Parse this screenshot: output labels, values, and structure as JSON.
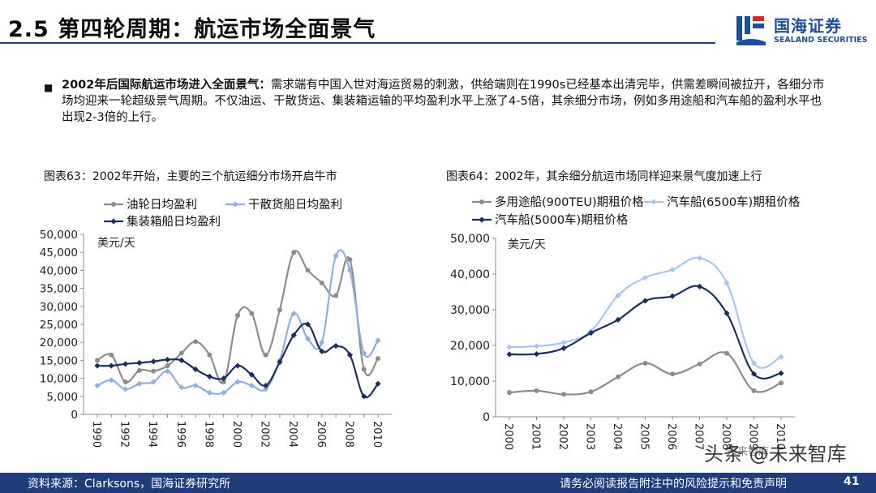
{
  "header": {
    "title": "2.5 第四轮周期：航运市场全面景气",
    "logo_cn": "国海证券",
    "logo_en": "SEALAND SECURITIES"
  },
  "bullet": {
    "bold": "2002年后国际航运市场进入全面景气：",
    "text": "需求端有中国入世对海运贸易的刺激，供给端则在1990s已经基本出清完毕，供需差瞬间被拉开，各细分市场均迎来一轮超级景气周期。不仅油运、干散货运、集装箱运输的平均盈利水平上涨了4-5倍，其余细分市场，例如多用途船和汽车船的盈利水平也出现2-3倍的上行。"
  },
  "figures": {
    "left_title": "图表63：2002年开始，主要的三个航运细分市场开启牛市",
    "right_title": "图表64：2002年，其余细分航运市场同样迎来景气度加速上行"
  },
  "footer": {
    "source": "资料来源：Clarksons，国海证券研究所",
    "disclaimer": "请务必阅读报告附注中的风险提示和免责声明",
    "page": "41"
  },
  "watermark": {
    "text": "头条 @未来智库",
    "small": "未来智库"
  },
  "chart_data": [
    {
      "type": "line",
      "unit_label": "美元/天",
      "x": [
        1990,
        1991,
        1992,
        1993,
        1994,
        1995,
        1996,
        1997,
        1998,
        1999,
        2000,
        2001,
        2002,
        2003,
        2004,
        2005,
        2006,
        2007,
        2008,
        2009,
        2010
      ],
      "x_tick_labels": [
        "1990",
        "1992",
        "1994",
        "1996",
        "1998",
        "2000",
        "2002",
        "2004",
        "2006",
        "2008",
        "2010"
      ],
      "ylim": [
        0,
        50000
      ],
      "y_ticks": [
        "0",
        "5,000",
        "10,000",
        "15,000",
        "20,000",
        "25,000",
        "30,000",
        "35,000",
        "40,000",
        "45,000",
        "50,000"
      ],
      "legend_position": "top",
      "series": [
        {
          "name": "油轮日均盈利",
          "color": "#8c8c8c",
          "marker": "circle",
          "values": [
            15000,
            16500,
            9000,
            12200,
            12000,
            13500,
            17000,
            20200,
            16500,
            9000,
            27500,
            28000,
            16500,
            29000,
            45000,
            40000,
            36500,
            33000,
            43000,
            12500,
            15500
          ]
        },
        {
          "name": "干散货船日均盈利",
          "color": "#8db0e0",
          "marker": "diamond",
          "values": [
            8000,
            9500,
            7000,
            8500,
            9000,
            12000,
            7500,
            8000,
            6000,
            6000,
            9000,
            8000,
            7000,
            15000,
            28000,
            21000,
            20000,
            44000,
            40000,
            17000,
            20500
          ]
        },
        {
          "name": "集装箱船日均盈利",
          "color": "#1c2f5c",
          "marker": "diamond",
          "values": [
            13500,
            13500,
            14000,
            14300,
            14700,
            15200,
            15000,
            12500,
            10500,
            10000,
            13500,
            11000,
            8000,
            14500,
            22000,
            25000,
            17500,
            19000,
            16500,
            5000,
            8500
          ]
        }
      ]
    },
    {
      "type": "line",
      "unit_label": "美元/天",
      "x": [
        2000,
        2001,
        2002,
        2003,
        2004,
        2005,
        2006,
        2007,
        2008,
        2009,
        2010
      ],
      "x_tick_labels": [
        "2000",
        "2001",
        "2002",
        "2003",
        "2004",
        "2005",
        "2006",
        "2007",
        "2008",
        "2009",
        "2010"
      ],
      "ylim": [
        0,
        50000
      ],
      "y_ticks": [
        "0",
        "10,000",
        "20,000",
        "30,000",
        "40,000",
        "50,000"
      ],
      "legend_position": "top",
      "series": [
        {
          "name": "多用途船(900TEU)期租价格",
          "color": "#8c8c8c",
          "marker": "circle",
          "values": [
            6800,
            7300,
            6300,
            7000,
            11200,
            15000,
            12000,
            14800,
            17800,
            7300,
            9500
          ]
        },
        {
          "name": "汽车船(6500车)期租价格",
          "color": "#a8c6ec",
          "marker": "diamond",
          "values": [
            19500,
            19800,
            20800,
            24000,
            34000,
            39000,
            41200,
            44500,
            37500,
            15000,
            16800
          ]
        },
        {
          "name": "汽车船(5000车)期租价格",
          "color": "#1c2f5c",
          "marker": "diamond",
          "values": [
            17500,
            17600,
            19200,
            23500,
            27200,
            32500,
            33800,
            36500,
            29000,
            12000,
            12200
          ]
        }
      ]
    }
  ],
  "colors": {
    "header_rule": "#1f3d7a",
    "footer_band": "#1f3d7a",
    "logo_blue": "#1a4f9c",
    "logo_red": "#d9262c"
  }
}
